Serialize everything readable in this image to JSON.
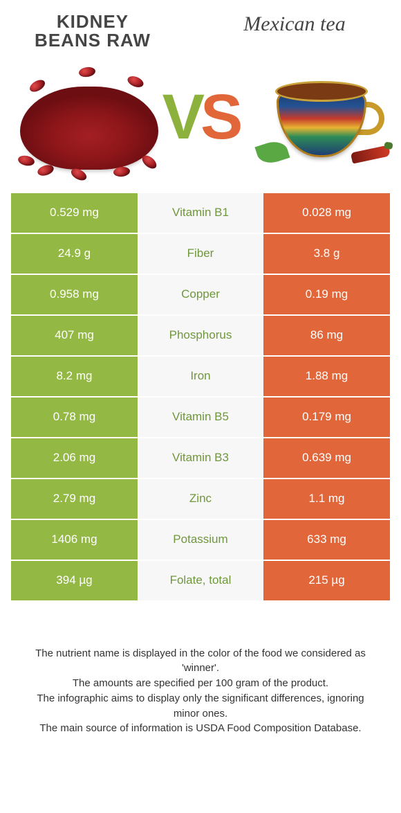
{
  "header": {
    "left_title_line1": "Kidney",
    "left_title_line2": "beans raw",
    "right_title": "Mexican tea",
    "vs_v": "V",
    "vs_s": "S"
  },
  "colors": {
    "left_bg": "#93b843",
    "right_bg": "#e1663a",
    "mid_bg": "#f7f7f7",
    "nutrient_left_win": "#6f973b",
    "nutrient_right_win": "#d86b41",
    "page_bg": "#ffffff"
  },
  "table": {
    "rows": [
      {
        "left": "0.529 mg",
        "nutrient": "Vitamin B1",
        "right": "0.028 mg",
        "winner": "left"
      },
      {
        "left": "24.9 g",
        "nutrient": "Fiber",
        "right": "3.8 g",
        "winner": "left"
      },
      {
        "left": "0.958 mg",
        "nutrient": "Copper",
        "right": "0.19 mg",
        "winner": "left"
      },
      {
        "left": "407 mg",
        "nutrient": "Phosphorus",
        "right": "86 mg",
        "winner": "left"
      },
      {
        "left": "8.2 mg",
        "nutrient": "Iron",
        "right": "1.88 mg",
        "winner": "left"
      },
      {
        "left": "0.78 mg",
        "nutrient": "Vitamin B5",
        "right": "0.179 mg",
        "winner": "left"
      },
      {
        "left": "2.06 mg",
        "nutrient": "Vitamin B3",
        "right": "0.639 mg",
        "winner": "left"
      },
      {
        "left": "2.79 mg",
        "nutrient": "Zinc",
        "right": "1.1 mg",
        "winner": "left"
      },
      {
        "left": "1406 mg",
        "nutrient": "Potassium",
        "right": "633 mg",
        "winner": "left"
      },
      {
        "left": "394 µg",
        "nutrient": "Folate, total",
        "right": "215 µg",
        "winner": "left"
      }
    ]
  },
  "footer": {
    "line1": "The nutrient name is displayed in the color of the food we considered as 'winner'.",
    "line2": "The amounts are specified per 100 gram of the product.",
    "line3": "The infographic aims to display only the significant differences, ignoring minor ones.",
    "line4": "The main source of information is USDA Food Composition Database."
  },
  "images": {
    "left_alt": "pile of raw red kidney beans",
    "right_alt": "decorated Mexican tea cup with chili and herbs"
  }
}
